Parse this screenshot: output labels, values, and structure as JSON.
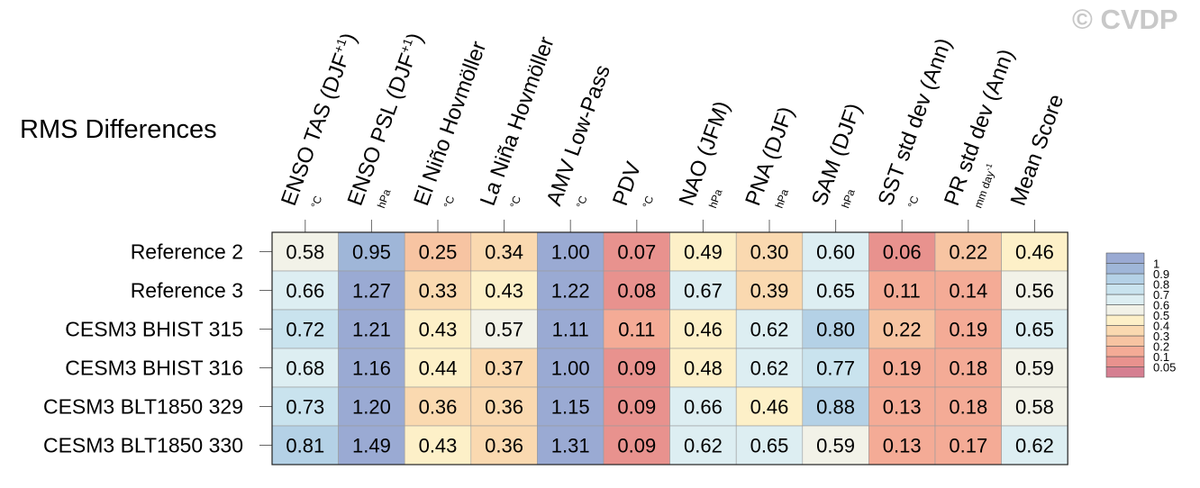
{
  "watermark": "© CVDP",
  "chart_data": {
    "type": "heatmap",
    "title": "RMS Differences",
    "columns": [
      {
        "label": "ENSO TAS (DJF",
        "sup": "+1",
        "close": ")",
        "unit": "°C"
      },
      {
        "label": "ENSO PSL (DJF",
        "sup": "+1",
        "close": ")",
        "unit": "hPa"
      },
      {
        "label": "El Niño Hovmöller",
        "sup": "",
        "close": "",
        "unit": "°C"
      },
      {
        "label": "La Niña Hovmöller",
        "sup": "",
        "close": "",
        "unit": "°C"
      },
      {
        "label": "AMV Low-Pass",
        "sup": "",
        "close": "",
        "unit": "°C"
      },
      {
        "label": "PDV",
        "sup": "",
        "close": "",
        "unit": "°C"
      },
      {
        "label": "NAO (JFM)",
        "sup": "",
        "close": "",
        "unit": "hPa"
      },
      {
        "label": "PNA (DJF)",
        "sup": "",
        "close": "",
        "unit": "hPa"
      },
      {
        "label": "SAM (DJF)",
        "sup": "",
        "close": "",
        "unit": "hPa"
      },
      {
        "label": "SST std dev (Ann)",
        "sup": "",
        "close": "",
        "unit": "°C"
      },
      {
        "label": "PR std dev (Ann)",
        "sup": "",
        "close": "",
        "unit": "mm day",
        "unit_sup": "-1"
      },
      {
        "label": "Mean Score",
        "sup": "",
        "close": "",
        "unit": ""
      }
    ],
    "rows": [
      "Reference 2",
      "Reference 3",
      "CESM3 BHIST 315",
      "CESM3 BHIST 316",
      "CESM3 BLT1850 329",
      "CESM3 BLT1850 330"
    ],
    "values": [
      [
        0.58,
        0.95,
        0.25,
        0.34,
        1.0,
        0.07,
        0.49,
        0.3,
        0.6,
        0.06,
        0.22,
        0.46
      ],
      [
        0.66,
        1.27,
        0.33,
        0.43,
        1.22,
        0.08,
        0.67,
        0.39,
        0.65,
        0.11,
        0.14,
        0.56
      ],
      [
        0.72,
        1.21,
        0.43,
        0.57,
        1.11,
        0.11,
        0.46,
        0.62,
        0.8,
        0.22,
        0.19,
        0.65
      ],
      [
        0.68,
        1.16,
        0.44,
        0.37,
        1.0,
        0.09,
        0.48,
        0.62,
        0.77,
        0.19,
        0.18,
        0.59
      ],
      [
        0.73,
        1.2,
        0.36,
        0.36,
        1.15,
        0.09,
        0.66,
        0.46,
        0.88,
        0.13,
        0.18,
        0.58
      ],
      [
        0.81,
        1.49,
        0.43,
        0.36,
        1.31,
        0.09,
        0.62,
        0.65,
        0.59,
        0.13,
        0.17,
        0.62
      ]
    ],
    "value_labels": [
      [
        "0.58",
        "0.95",
        "0.25",
        "0.34",
        "1.00",
        "0.07",
        "0.49",
        "0.30",
        "0.60",
        "0.06",
        "0.22",
        "0.46"
      ],
      [
        "0.66",
        "1.27",
        "0.33",
        "0.43",
        "1.22",
        "0.08",
        "0.67",
        "0.39",
        "0.65",
        "0.11",
        "0.14",
        "0.56"
      ],
      [
        "0.72",
        "1.21",
        "0.43",
        "0.57",
        "1.11",
        "0.11",
        "0.46",
        "0.62",
        "0.80",
        "0.22",
        "0.19",
        "0.65"
      ],
      [
        "0.68",
        "1.16",
        "0.44",
        "0.37",
        "1.00",
        "0.09",
        "0.48",
        "0.62",
        "0.77",
        "0.19",
        "0.18",
        "0.59"
      ],
      [
        "0.73",
        "1.20",
        "0.36",
        "0.36",
        "1.15",
        "0.09",
        "0.66",
        "0.46",
        "0.88",
        "0.13",
        "0.18",
        "0.58"
      ],
      [
        "0.81",
        "1.49",
        "0.43",
        "0.36",
        "1.31",
        "0.09",
        "0.62",
        "0.65",
        "0.59",
        "0.13",
        "0.17",
        "0.62"
      ]
    ],
    "colorbar": {
      "boundaries": [
        0,
        0.05,
        0.1,
        0.2,
        0.3,
        0.4,
        0.5,
        0.6,
        0.7,
        0.8,
        0.9,
        1,
        10
      ],
      "tick_labels": [
        "0.05",
        "0.1",
        "0.2",
        "0.3",
        "0.4",
        "0.5",
        "0.6",
        "0.7",
        "0.8",
        "0.9",
        "1"
      ],
      "colors": [
        "#d57f91",
        "#e8928e",
        "#f4ab96",
        "#f7c4a2",
        "#fad9b0",
        "#fdf0c8",
        "#f2f2e8",
        "#ddeef2",
        "#c9e3ee",
        "#b4d1e6",
        "#9fb6d8",
        "#9aaad3"
      ],
      "placement": "right"
    }
  }
}
